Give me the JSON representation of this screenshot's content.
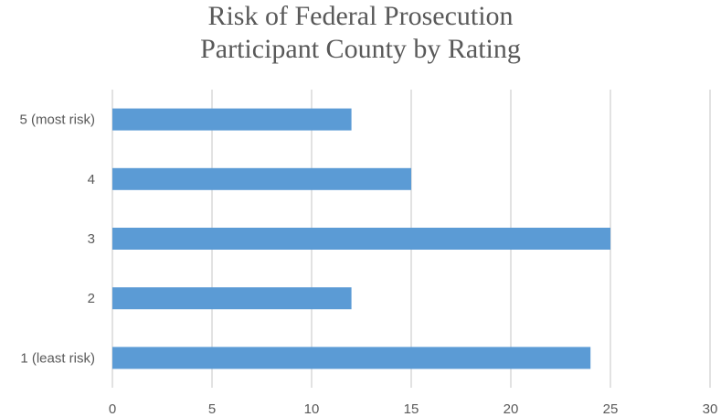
{
  "chart_data": {
    "type": "bar",
    "orientation": "horizontal",
    "title": [
      "Risk of Federal Prosecution",
      "Participant County by Rating"
    ],
    "categories": [
      "5 (most risk)",
      "4",
      "3",
      "2",
      "1 (least risk)"
    ],
    "values": [
      12,
      15,
      25,
      12,
      24
    ],
    "xlim": [
      0,
      30
    ],
    "xticks": [
      0,
      5,
      10,
      15,
      20,
      25,
      30
    ],
    "grid": true,
    "legend": "none",
    "bar_color": "#5b9bd5",
    "grid_color": "#d9d9d9"
  }
}
